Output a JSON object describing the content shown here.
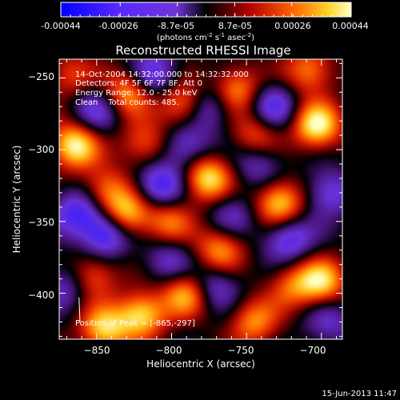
{
  "colorbar": {
    "ticks": [
      "-0.00044",
      "-0.00026",
      "-8.7e-05",
      "8.7e-05",
      "0.00026",
      "0.00044"
    ],
    "units_main": "(photons cm",
    "units_sup1": "-2",
    "units_mid1": " s",
    "units_sup2": "-1",
    "units_mid2": " asec",
    "units_sup3": "-2",
    "units_end": ")"
  },
  "footer": {
    "timestamp": "15-Jun-2013 11:47"
  },
  "chart_data": {
    "type": "heatmap",
    "title": "Reconstructed RHESSI Image",
    "xlabel": "Heliocentric X (arcsec)",
    "ylabel": "Heliocentric Y (arcsec)",
    "xlim": [
      -875,
      -686
    ],
    "ylim": [
      -432,
      -237
    ],
    "x_ticks": [
      {
        "value": -850,
        "label": "−850"
      },
      {
        "value": -800,
        "label": "−800"
      },
      {
        "value": -750,
        "label": "−750"
      },
      {
        "value": -700,
        "label": "−700"
      }
    ],
    "y_ticks": [
      {
        "value": -250,
        "label": "−250"
      },
      {
        "value": -300,
        "label": "−300"
      },
      {
        "value": -350,
        "label": "−350"
      },
      {
        "value": -400,
        "label": "−400"
      }
    ],
    "color_range": [
      -0.00044,
      0.00044
    ],
    "annotations": [
      "14-Oct-2004 14:32:00.000 to 14:32:32.000",
      "Detectors: 4F 5F 6F 7F 8F, Att 0",
      "Energy Range: 12.0 - 25.0 keV",
      "Clean    Total counts: 485."
    ],
    "peak_label": "Position of Peak = [-865,-297]",
    "peak": {
      "x": -865,
      "y": -297
    },
    "sources": [
      {
        "x": -865,
        "y": -297,
        "v": 1.0
      },
      {
        "x": -829,
        "y": -260,
        "v": 0.75
      },
      {
        "x": -818,
        "y": -296,
        "v": 0.55
      },
      {
        "x": -792,
        "y": -268,
        "v": 0.7
      },
      {
        "x": -776,
        "y": -320,
        "v": 0.95
      },
      {
        "x": -757,
        "y": -258,
        "v": 0.7
      },
      {
        "x": -744,
        "y": -290,
        "v": 0.55
      },
      {
        "x": -728,
        "y": -337,
        "v": 0.9
      },
      {
        "x": -703,
        "y": -283,
        "v": 1.0
      },
      {
        "x": -708,
        "y": -245,
        "v": 0.65
      },
      {
        "x": -700,
        "y": -392,
        "v": 0.85
      },
      {
        "x": -830,
        "y": -345,
        "v": 0.85
      },
      {
        "x": -844,
        "y": -328,
        "v": 0.6
      },
      {
        "x": -802,
        "y": -350,
        "v": 0.6
      },
      {
        "x": -820,
        "y": -415,
        "v": 0.9
      },
      {
        "x": -845,
        "y": -425,
        "v": 0.85
      },
      {
        "x": -853,
        "y": -388,
        "v": 0.6
      },
      {
        "x": -790,
        "y": -400,
        "v": 0.8
      },
      {
        "x": -768,
        "y": -370,
        "v": 0.7
      },
      {
        "x": -745,
        "y": -420,
        "v": 0.65
      },
      {
        "x": -720,
        "y": -395,
        "v": 0.5
      },
      {
        "x": -868,
        "y": -248,
        "v": 0.45
      },
      {
        "x": -863,
        "y": -343,
        "v": -0.65
      },
      {
        "x": -844,
        "y": -358,
        "v": -0.85
      },
      {
        "x": -812,
        "y": -248,
        "v": -0.6
      },
      {
        "x": -808,
        "y": -325,
        "v": -0.75
      },
      {
        "x": -790,
        "y": -298,
        "v": -0.55
      },
      {
        "x": -775,
        "y": -270,
        "v": -0.55
      },
      {
        "x": -732,
        "y": -270,
        "v": -0.6
      },
      {
        "x": -742,
        "y": -310,
        "v": -0.45
      },
      {
        "x": -722,
        "y": -362,
        "v": -0.65
      },
      {
        "x": -695,
        "y": -330,
        "v": -0.55
      },
      {
        "x": -772,
        "y": -395,
        "v": -0.55
      },
      {
        "x": -802,
        "y": -378,
        "v": -0.45
      },
      {
        "x": -870,
        "y": -395,
        "v": -0.45
      },
      {
        "x": -850,
        "y": -273,
        "v": -0.5
      },
      {
        "x": -760,
        "y": -345,
        "v": -0.4
      },
      {
        "x": -695,
        "y": -420,
        "v": -0.4
      }
    ]
  }
}
